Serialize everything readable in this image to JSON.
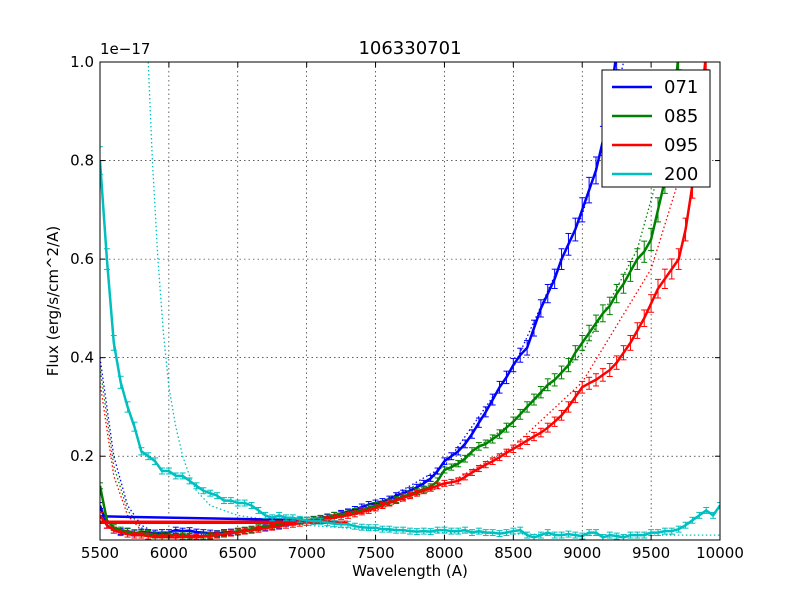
{
  "chart_data": {
    "type": "line",
    "title": "106330701",
    "xlabel": "Wavelength (A)",
    "ylabel": "Flux (erg/s/cm^2/A)",
    "scale_label": "1e−17",
    "xlim": [
      5500,
      10000
    ],
    "ylim": [
      0.03,
      1.0
    ],
    "grid": true,
    "legend_position": "top-right",
    "x_ticks": [
      5500,
      6000,
      6500,
      7000,
      7500,
      8000,
      8500,
      9000,
      9500,
      10000
    ],
    "x_tick_labels": [
      "5500",
      "6000",
      "6500",
      "7000",
      "7500",
      "8000",
      "8500",
      "9000",
      "9500",
      "10000"
    ],
    "y_ticks": [
      0.2,
      0.4,
      0.6,
      0.8,
      1.0
    ],
    "y_tick_labels": [
      "0.2",
      "0.4",
      "0.6",
      "0.8",
      "1.0"
    ],
    "series": [
      {
        "name": "071",
        "color": "#0000ff",
        "x": [
          5500,
          5550,
          5600,
          5650,
          5700,
          5750,
          5800,
          5850,
          5900,
          5950,
          6000,
          6050,
          6100,
          6150,
          6200,
          6250,
          6300,
          6350,
          6400,
          6450,
          6500,
          6550,
          6600,
          6650,
          6700,
          6750,
          6800,
          6850,
          6900,
          6950,
          7000,
          7050,
          7100,
          7150,
          7200,
          7250,
          7300,
          7350,
          7400,
          7450,
          7500,
          7550,
          7600,
          7650,
          7700,
          7750,
          7800,
          7850,
          7900,
          7950,
          8000,
          8050,
          8100,
          8150,
          8200,
          8250,
          8300,
          8350,
          8400,
          8450,
          8500,
          8550,
          8600,
          8650,
          8700,
          8750,
          8800,
          8850,
          8900,
          8950,
          9000,
          9050,
          9100,
          9150,
          9200,
          9250
        ],
        "values": [
          0.1,
          0.06,
          0.05,
          0.047,
          0.048,
          0.044,
          0.046,
          0.045,
          0.044,
          0.045,
          0.045,
          0.05,
          0.048,
          0.049,
          0.046,
          0.045,
          0.044,
          0.043,
          0.045,
          0.046,
          0.047,
          0.049,
          0.05,
          0.052,
          0.055,
          0.057,
          0.06,
          0.064,
          0.067,
          0.069,
          0.07,
          0.071,
          0.073,
          0.076,
          0.08,
          0.084,
          0.087,
          0.092,
          0.097,
          0.102,
          0.105,
          0.108,
          0.113,
          0.12,
          0.125,
          0.13,
          0.137,
          0.145,
          0.155,
          0.17,
          0.19,
          0.2,
          0.21,
          0.225,
          0.245,
          0.268,
          0.29,
          0.315,
          0.34,
          0.36,
          0.385,
          0.405,
          0.42,
          0.46,
          0.5,
          0.53,
          0.56,
          0.6,
          0.63,
          0.66,
          0.7,
          0.74,
          0.78,
          0.84,
          0.92,
          1.02
        ],
        "connector": {
          "x": [
            5500,
            7000
          ],
          "values": [
            0.078,
            0.07
          ]
        },
        "model": {
          "x": [
            5500,
            5600,
            5700,
            5800,
            5900,
            6000,
            6200,
            6500,
            7000,
            7500,
            8000,
            8500,
            9000,
            9200,
            9300
          ],
          "values": [
            0.4,
            0.2,
            0.1,
            0.06,
            0.045,
            0.04,
            0.04,
            0.045,
            0.07,
            0.1,
            0.18,
            0.38,
            0.69,
            0.88,
            1.0
          ]
        }
      },
      {
        "name": "085",
        "color": "#008000",
        "x": [
          5500,
          5550,
          5600,
          5650,
          5700,
          5750,
          5800,
          5850,
          5900,
          5950,
          6000,
          6050,
          6100,
          6150,
          6200,
          6250,
          6300,
          6350,
          6400,
          6450,
          6500,
          6550,
          6600,
          6650,
          6700,
          6750,
          6800,
          6850,
          6900,
          6950,
          7000,
          7050,
          7100,
          7150,
          7200,
          7250,
          7300,
          7350,
          7400,
          7450,
          7500,
          7550,
          7600,
          7650,
          7700,
          7750,
          7800,
          7850,
          7900,
          7950,
          8000,
          8050,
          8100,
          8150,
          8200,
          8250,
          8300,
          8350,
          8400,
          8450,
          8500,
          8550,
          8600,
          8650,
          8700,
          8750,
          8800,
          8850,
          8900,
          8950,
          9000,
          9050,
          9100,
          9150,
          9200,
          9250,
          9300,
          9350,
          9400,
          9450,
          9500,
          9550,
          9600,
          9650,
          9700
        ],
        "values": [
          0.14,
          0.07,
          0.055,
          0.05,
          0.047,
          0.045,
          0.044,
          0.043,
          0.04,
          0.04,
          0.04,
          0.041,
          0.04,
          0.038,
          0.037,
          0.038,
          0.04,
          0.042,
          0.043,
          0.045,
          0.048,
          0.05,
          0.052,
          0.055,
          0.058,
          0.06,
          0.063,
          0.065,
          0.066,
          0.068,
          0.07,
          0.072,
          0.074,
          0.077,
          0.08,
          0.082,
          0.085,
          0.088,
          0.09,
          0.095,
          0.1,
          0.103,
          0.107,
          0.112,
          0.118,
          0.123,
          0.128,
          0.133,
          0.138,
          0.15,
          0.172,
          0.178,
          0.185,
          0.195,
          0.21,
          0.22,
          0.225,
          0.235,
          0.245,
          0.258,
          0.27,
          0.285,
          0.3,
          0.315,
          0.33,
          0.345,
          0.355,
          0.37,
          0.385,
          0.41,
          0.43,
          0.45,
          0.47,
          0.49,
          0.505,
          0.53,
          0.55,
          0.575,
          0.6,
          0.615,
          0.64,
          0.7,
          0.76,
          0.87,
          1.02
        ],
        "connector": {
          "x": [
            5500,
            7300
          ],
          "values": [
            0.065,
            0.065
          ]
        },
        "model": {
          "x": [
            5500,
            5600,
            5700,
            5800,
            5900,
            6000,
            6200,
            6500,
            7000,
            7500,
            8000,
            8500,
            9000,
            9400,
            9600,
            9700
          ],
          "values": [
            0.38,
            0.18,
            0.09,
            0.055,
            0.042,
            0.037,
            0.037,
            0.045,
            0.07,
            0.1,
            0.17,
            0.27,
            0.41,
            0.62,
            0.82,
            1.0
          ]
        }
      },
      {
        "name": "095",
        "color": "#ff0000",
        "x": [
          5500,
          5550,
          5600,
          5650,
          5700,
          5750,
          5800,
          5850,
          5900,
          5950,
          6000,
          6050,
          6100,
          6150,
          6200,
          6250,
          6300,
          6350,
          6400,
          6450,
          6500,
          6550,
          6600,
          6650,
          6700,
          6750,
          6800,
          6850,
          6900,
          6950,
          7000,
          7050,
          7100,
          7150,
          7200,
          7250,
          7300,
          7350,
          7400,
          7450,
          7500,
          7550,
          7600,
          7650,
          7700,
          7750,
          7800,
          7850,
          7900,
          7950,
          8000,
          8050,
          8100,
          8150,
          8200,
          8250,
          8300,
          8350,
          8400,
          8450,
          8500,
          8550,
          8600,
          8650,
          8700,
          8750,
          8800,
          8850,
          8900,
          8950,
          9000,
          9050,
          9100,
          9150,
          9200,
          9250,
          9300,
          9350,
          9400,
          9450,
          9500,
          9550,
          9600,
          9650,
          9700,
          9750,
          9800,
          9850,
          9900
        ],
        "values": [
          0.08,
          0.06,
          0.05,
          0.045,
          0.042,
          0.04,
          0.04,
          0.038,
          0.036,
          0.036,
          0.036,
          0.035,
          0.037,
          0.036,
          0.035,
          0.037,
          0.038,
          0.04,
          0.042,
          0.044,
          0.046,
          0.048,
          0.05,
          0.052,
          0.054,
          0.056,
          0.058,
          0.06,
          0.062,
          0.064,
          0.066,
          0.068,
          0.07,
          0.072,
          0.075,
          0.078,
          0.08,
          0.083,
          0.087,
          0.09,
          0.095,
          0.1,
          0.105,
          0.11,
          0.115,
          0.12,
          0.125,
          0.13,
          0.135,
          0.14,
          0.145,
          0.147,
          0.15,
          0.158,
          0.167,
          0.175,
          0.183,
          0.19,
          0.198,
          0.207,
          0.215,
          0.223,
          0.232,
          0.24,
          0.248,
          0.258,
          0.27,
          0.283,
          0.3,
          0.32,
          0.34,
          0.348,
          0.355,
          0.365,
          0.375,
          0.39,
          0.41,
          0.43,
          0.455,
          0.48,
          0.51,
          0.54,
          0.56,
          0.58,
          0.6,
          0.66,
          0.75,
          0.88,
          1.02
        ],
        "connector": {
          "x": [
            5500,
            7300
          ],
          "values": [
            0.067,
            0.067
          ]
        },
        "model": {
          "x": [
            5500,
            5600,
            5700,
            5800,
            5900,
            6000,
            6200,
            6500,
            7000,
            7500,
            8000,
            8500,
            9000,
            9500,
            9800,
            9900
          ],
          "values": [
            0.35,
            0.16,
            0.08,
            0.05,
            0.04,
            0.035,
            0.035,
            0.045,
            0.065,
            0.09,
            0.14,
            0.22,
            0.35,
            0.58,
            0.85,
            1.0
          ]
        }
      },
      {
        "name": "200",
        "color": "#00bfbf",
        "x": [
          5500,
          5550,
          5600,
          5650,
          5700,
          5750,
          5800,
          5850,
          5900,
          5950,
          6000,
          6050,
          6100,
          6150,
          6200,
          6250,
          6300,
          6350,
          6400,
          6450,
          6500,
          6550,
          6600,
          6650,
          6700,
          6750,
          6800,
          6850,
          6900,
          6950,
          7000,
          7050,
          7100,
          7150,
          7200,
          7250,
          7300,
          7350,
          7400,
          7450,
          7500,
          7550,
          7600,
          7650,
          7700,
          7750,
          7800,
          7850,
          7900,
          7950,
          8000,
          8050,
          8100,
          8150,
          8200,
          8250,
          8300,
          8350,
          8400,
          8450,
          8500,
          8550,
          8600,
          8650,
          8700,
          8750,
          8800,
          8850,
          8900,
          8950,
          9000,
          9050,
          9100,
          9150,
          9200,
          9250,
          9300,
          9350,
          9400,
          9450,
          9500,
          9550,
          9600,
          9650,
          9700,
          9750,
          9800,
          9850,
          9900,
          9950,
          10000
        ],
        "values": [
          0.8,
          0.6,
          0.43,
          0.35,
          0.3,
          0.26,
          0.21,
          0.2,
          0.19,
          0.17,
          0.17,
          0.16,
          0.16,
          0.15,
          0.14,
          0.13,
          0.125,
          0.12,
          0.11,
          0.11,
          0.105,
          0.105,
          0.1,
          0.09,
          0.08,
          0.075,
          0.08,
          0.075,
          0.075,
          0.072,
          0.07,
          0.068,
          0.068,
          0.065,
          0.063,
          0.062,
          0.062,
          0.058,
          0.056,
          0.055,
          0.055,
          0.052,
          0.052,
          0.05,
          0.05,
          0.048,
          0.047,
          0.048,
          0.047,
          0.05,
          0.05,
          0.048,
          0.048,
          0.05,
          0.045,
          0.048,
          0.045,
          0.045,
          0.043,
          0.045,
          0.048,
          0.05,
          0.04,
          0.035,
          0.04,
          0.045,
          0.04,
          0.04,
          0.042,
          0.04,
          0.038,
          0.045,
          0.045,
          0.035,
          0.04,
          0.038,
          0.035,
          0.04,
          0.04,
          0.04,
          0.045,
          0.045,
          0.048,
          0.048,
          0.052,
          0.06,
          0.07,
          0.08,
          0.09,
          0.08,
          0.1
        ],
        "model": {
          "x": [
            5850,
            5880,
            5920,
            5960,
            6000,
            6050,
            6100,
            6150,
            6200,
            6300,
            6500,
            7000,
            7500,
            8000,
            9000,
            10000
          ],
          "values": [
            1.0,
            0.8,
            0.6,
            0.45,
            0.34,
            0.26,
            0.2,
            0.16,
            0.13,
            0.1,
            0.08,
            0.06,
            0.05,
            0.045,
            0.04,
            0.04
          ]
        }
      }
    ]
  }
}
